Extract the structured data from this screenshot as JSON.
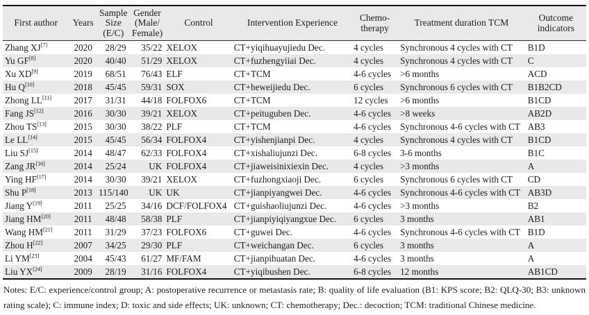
{
  "table": {
    "headers": [
      "First author",
      "Years",
      "Sample\nSize\n(E/C)",
      "Gender\n(Male/\nFemale)",
      "Control",
      "Intervention Experience",
      "Chemo-\ntherapy",
      "Treatment duration TCM",
      "Outcome\nindicators"
    ],
    "rows": [
      {
        "author": "Zhang XJ",
        "ref": "[7]",
        "year": "2020",
        "sample": "28/29",
        "gender": "35/22",
        "control": "XELOX",
        "intervention": "CT+yiqihuayujiedu Dec.",
        "chemo": "4 cycles",
        "duration": "Synchronous 4 cycles with CT",
        "outcome": "B1D"
      },
      {
        "author": "Yu GF",
        "ref": "[8]",
        "year": "2020",
        "sample": "40/40",
        "gender": "51/29",
        "control": "XELOX",
        "intervention": "CT+fuzhengyiiai Dec.",
        "chemo": "4 cycles",
        "duration": "Synchronous 4 cycles with CT",
        "outcome": "C"
      },
      {
        "author": "Xu XD",
        "ref": "[9]",
        "year": "2019",
        "sample": "68/51",
        "gender": "76/43",
        "control": "ELF",
        "intervention": "CT+TCM",
        "chemo": "4-6 cycles",
        "duration": ">6 months",
        "outcome": "ACD"
      },
      {
        "author": "Hu Q",
        "ref": "[10]",
        "year": "2018",
        "sample": "45/45",
        "gender": "59/31",
        "control": "SOX",
        "intervention": "CT+heweijiedu Dec.",
        "chemo": "6 cycles",
        "duration": "Synchronous 6 cycles with CT",
        "outcome": "B1B2CD"
      },
      {
        "author": "Zhong LL",
        "ref": "[11]",
        "year": "2017",
        "sample": "31/31",
        "gender": "44/18",
        "control": "FOLFOX6",
        "intervention": "CT+TCM",
        "chemo": "12 cycles",
        "duration": ">6 months",
        "outcome": "B1CD"
      },
      {
        "author": "Fang JS",
        "ref": "[12]",
        "year": "2016",
        "sample": "30/30",
        "gender": "39/21",
        "control": "XELOX",
        "intervention": "CT+peituguben Dec.",
        "chemo": "4-6 cycles",
        "duration": ">8 weeks",
        "outcome": "AB2D"
      },
      {
        "author": "Zhou TS",
        "ref": "[13]",
        "year": "2015",
        "sample": "30/30",
        "gender": "38/22",
        "control": "PLF",
        "intervention": "CT+TCM",
        "chemo": "4-6 cycles",
        "duration": "Synchronous 4-6 cycles with CT",
        "outcome": "AB3"
      },
      {
        "author": "Le LL",
        "ref": "[14]",
        "year": "2015",
        "sample": "45/45",
        "gender": "56/34",
        "control": "FOLFOX4",
        "intervention": "CT+yishenjianpi Dec.",
        "chemo": "4 cycles",
        "duration": "Synchronous 4 cycles with CT",
        "outcome": "B1CD"
      },
      {
        "author": "Liu SJ",
        "ref": "[15]",
        "year": "2014",
        "sample": "48/47",
        "gender": "62/33",
        "control": "FOLFOX4",
        "intervention": "CT+xishaliujunzi Dec.",
        "chemo": "6-8 cycles",
        "duration": "3-6 months",
        "outcome": "B1C"
      },
      {
        "author": "Zang JR",
        "ref": "[16]",
        "year": "2014",
        "sample": "25/24",
        "gender": "UK",
        "control": "FOLFOX4",
        "intervention": "CT+jiaweisinixiexin Dec.",
        "chemo": "4 cycles",
        "duration": ">3 months",
        "outcome": "A"
      },
      {
        "author": "Ying HF",
        "ref": "[17]",
        "year": "2014",
        "sample": "30/30",
        "gender": "39/21",
        "control": "XELOX",
        "intervention": "CT+fuzhongxiaoji Dec.",
        "chemo": "6 cycles",
        "duration": "Synchronous 6 cycles with CT",
        "outcome": "CD"
      },
      {
        "author": "Shu P",
        "ref": "[18]",
        "year": "2013",
        "sample": "115/140",
        "gender": "UK",
        "control": "UK",
        "intervention": "CT+jianpiyangwei Dec.",
        "chemo": "4-6 cycles",
        "duration": "Synchronous 4-6 cycles with CT",
        "outcome": "AB3D"
      },
      {
        "author": "Jiang Y",
        "ref": "[19]",
        "year": "2011",
        "sample": "25/25",
        "gender": "34/16",
        "control": "DCF/FOLFOX4",
        "intervention": "CT+guishaoliujunzi Dec.",
        "chemo": "4-6 cycles",
        "duration": ">3 months",
        "outcome": "B2"
      },
      {
        "author": "Jiang HM",
        "ref": "[20]",
        "year": "2011",
        "sample": "48/48",
        "gender": "58/38",
        "control": "PLF",
        "intervention": "CT+jianpiyiqiyangxue Dec.",
        "chemo": "6 cycles",
        "duration": "3 months",
        "outcome": "AB1"
      },
      {
        "author": "Wang HM",
        "ref": "[21]",
        "year": "2011",
        "sample": "31/29",
        "gender": "37/23",
        "control": "FOLFOX6",
        "intervention": "CT+guwei Dec.",
        "chemo": "4-6 cycles",
        "duration": "Synchronous 4-6 cycles with CT",
        "outcome": "B1D"
      },
      {
        "author": "Zhou H",
        "ref": "[22]",
        "year": "2007",
        "sample": "34/25",
        "gender": "29/30",
        "control": "PLF",
        "intervention": "CT+weichangan Dec.",
        "chemo": "6 cycles",
        "duration": "3 months",
        "outcome": "A"
      },
      {
        "author": "Li YM",
        "ref": "[23]",
        "year": "2004",
        "sample": "45/43",
        "gender": "61/27",
        "control": "MF/FAM",
        "intervention": "CT+jianpihuatan Dec.",
        "chemo": "4-6 cycles",
        "duration": "3 months",
        "outcome": "A"
      },
      {
        "author": "Liu YX",
        "ref": "[24]",
        "year": "2009",
        "sample": "28/19",
        "gender": "31/16",
        "control": "FOLFOX4",
        "intervention": "CT+yiqibushen Dec.",
        "chemo": "6-8 cycles",
        "duration": "12 months",
        "outcome": "AB1CD"
      }
    ]
  },
  "notes": {
    "text": "Notes: E/C: experience/control group; A: postoperative recurrence or metastasis rate; B: quality of life evaluation (B1: KPS score; B2: QLQ-30; B3: unknown rating scale); C: immune index; D: toxic and side effects; UK: unknown; CT: chemotherapy; Dec.: decoction; TCM: traditional Chinese medicine."
  },
  "colors": {
    "stripe": "#e9e9e9",
    "rule": "#111111",
    "text": "#1c1c1c"
  }
}
